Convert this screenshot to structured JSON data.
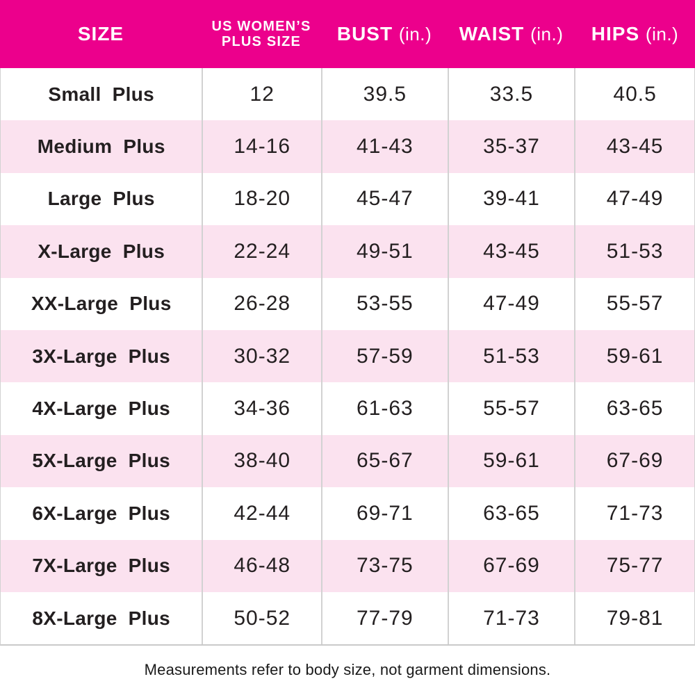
{
  "colors": {
    "header_bg": "#EC008C",
    "header_text": "#FFFFFF",
    "row_white": "#FFFFFF",
    "row_pink": "#FBE2EF",
    "text": "#231F20",
    "divider": "#D2D2D2"
  },
  "header": {
    "size": "SIZE",
    "plus_line1": "US WOMEN’S",
    "plus_line2": "PLUS SIZE",
    "bust": "BUST",
    "waist": "WAIST",
    "hips": "HIPS",
    "unit": "(in.)"
  },
  "chart_data": {
    "type": "table",
    "columns": [
      "SIZE",
      "US WOMEN’S PLUS SIZE",
      "BUST (in.)",
      "WAIST (in.)",
      "HIPS (in.)"
    ],
    "rows": [
      {
        "size": "Small Plus",
        "us_plus_size": "12",
        "bust": "39.5",
        "waist": "33.5",
        "hips": "40.5"
      },
      {
        "size": "Medium Plus",
        "us_plus_size": "14-16",
        "bust": "41-43",
        "waist": "35-37",
        "hips": "43-45"
      },
      {
        "size": "Large Plus",
        "us_plus_size": "18-20",
        "bust": "45-47",
        "waist": "39-41",
        "hips": "47-49"
      },
      {
        "size": "X-Large Plus",
        "us_plus_size": "22-24",
        "bust": "49-51",
        "waist": "43-45",
        "hips": "51-53"
      },
      {
        "size": "XX-Large Plus",
        "us_plus_size": "26-28",
        "bust": "53-55",
        "waist": "47-49",
        "hips": "55-57"
      },
      {
        "size": "3X-Large Plus",
        "us_plus_size": "30-32",
        "bust": "57-59",
        "waist": "51-53",
        "hips": "59-61"
      },
      {
        "size": "4X-Large Plus",
        "us_plus_size": "34-36",
        "bust": "61-63",
        "waist": "55-57",
        "hips": "63-65"
      },
      {
        "size": "5X-Large Plus",
        "us_plus_size": "38-40",
        "bust": "65-67",
        "waist": "59-61",
        "hips": "67-69"
      },
      {
        "size": "6X-Large Plus",
        "us_plus_size": "42-44",
        "bust": "69-71",
        "waist": "63-65",
        "hips": "71-73"
      },
      {
        "size": "7X-Large Plus",
        "us_plus_size": "46-48",
        "bust": "73-75",
        "waist": "67-69",
        "hips": "75-77"
      },
      {
        "size": "8X-Large Plus",
        "us_plus_size": "50-52",
        "bust": "77-79",
        "waist": "71-73",
        "hips": "79-81"
      }
    ]
  },
  "note": "Measurements refer to body size, not garment dimensions."
}
